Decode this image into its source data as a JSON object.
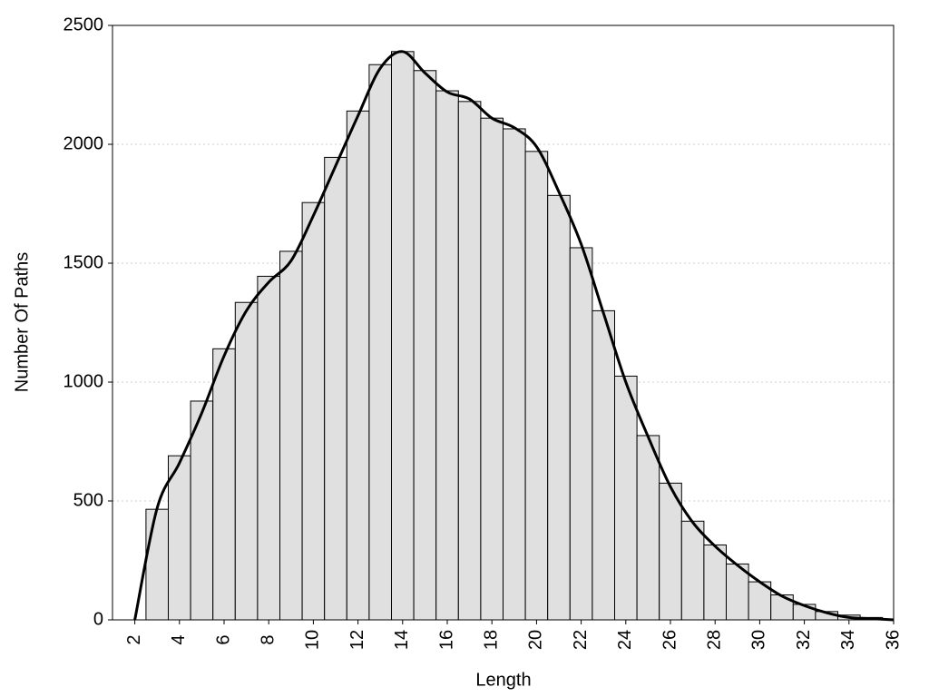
{
  "chart_data": {
    "type": "histogram",
    "xlabel": "Length",
    "ylabel": "Number Of Paths",
    "bins": [
      2.5,
      3.5,
      4.5,
      5.5,
      6.5,
      7.5,
      8.5,
      9.5,
      10.5,
      11.5,
      12.5,
      13.5,
      14.5,
      15.5,
      16.5,
      17.5,
      18.5,
      19.5,
      20.5,
      21.5,
      22.5,
      23.5,
      24.5,
      25.5,
      26.5,
      27.5,
      28.5,
      29.5,
      30.5,
      31.5,
      32.5,
      33.5,
      34.5,
      35.5
    ],
    "values": [
      465,
      690,
      920,
      1140,
      1335,
      1445,
      1550,
      1755,
      1945,
      2140,
      2335,
      2390,
      2310,
      2225,
      2180,
      2110,
      2065,
      1970,
      1785,
      1565,
      1300,
      1025,
      775,
      575,
      415,
      315,
      235,
      160,
      105,
      65,
      35,
      20,
      10
    ],
    "color": "#e0e0e0",
    "curve": {
      "x": [
        2,
        3,
        4,
        5,
        6,
        7,
        8,
        9,
        10,
        11,
        12,
        13,
        14,
        15,
        16,
        17,
        18,
        19,
        20,
        21,
        22,
        23,
        24,
        25,
        26,
        27,
        28,
        29,
        30,
        31,
        32,
        33,
        34,
        35,
        36
      ],
      "values": [
        0,
        470,
        660,
        870,
        1110,
        1300,
        1420,
        1510,
        1700,
        1910,
        2120,
        2320,
        2390,
        2300,
        2220,
        2190,
        2110,
        2070,
        1990,
        1800,
        1580,
        1290,
        1000,
        770,
        560,
        410,
        310,
        230,
        160,
        100,
        60,
        30,
        10,
        5,
        0
      ],
      "color": "#000000"
    },
    "xlim": [
      1,
      36
    ],
    "ylim": [
      0,
      2500
    ],
    "xticks": [
      2,
      4,
      6,
      8,
      10,
      12,
      14,
      16,
      18,
      20,
      22,
      24,
      26,
      28,
      30,
      32,
      34,
      36
    ],
    "yticks": [
      0,
      500,
      1000,
      1500,
      2000,
      2500
    ],
    "grid": true
  }
}
